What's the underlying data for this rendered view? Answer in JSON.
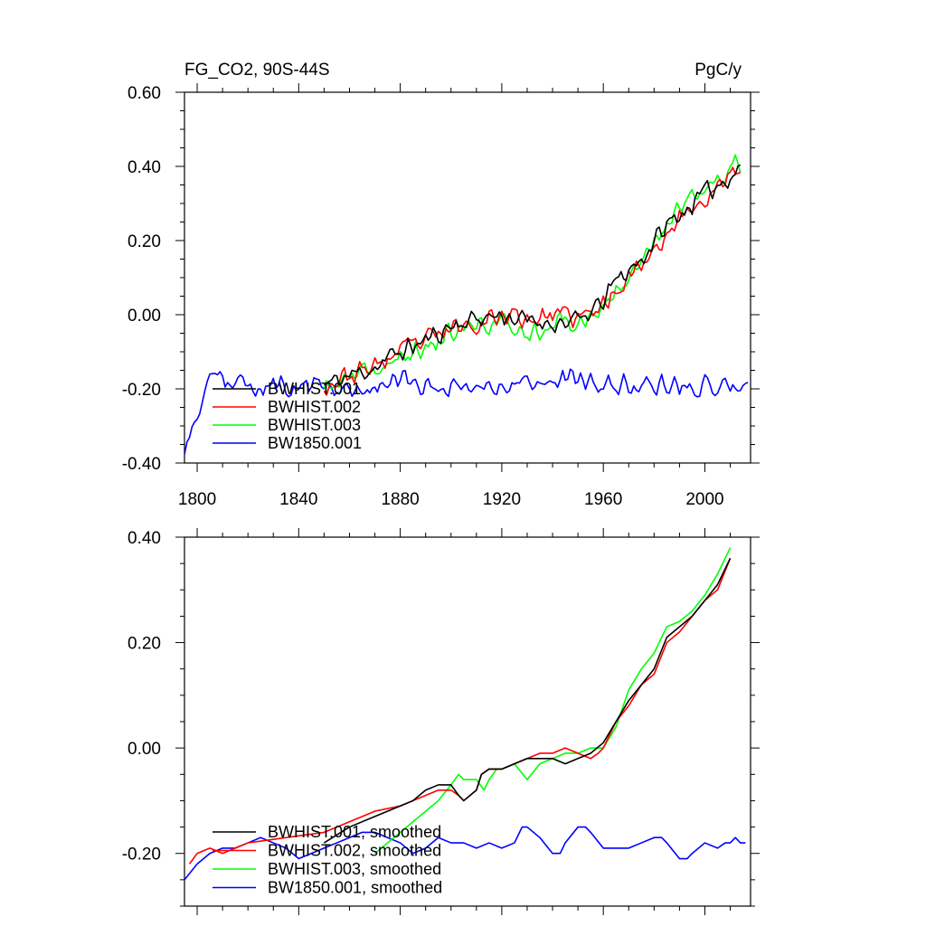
{
  "figure": {
    "title_left": "FG_CO2, 90S-44S",
    "title_right": "PgC/y"
  },
  "chart_data": [
    {
      "type": "line",
      "panel": "annual",
      "title": "FG_CO2, 90S-44S",
      "units": "PgC/y",
      "xlim": [
        1795,
        2018
      ],
      "ylim": [
        -0.4,
        0.6
      ],
      "x_ticks": [
        1800,
        1840,
        1880,
        1920,
        1960,
        2000
      ],
      "x_tick_labels": [
        "1800",
        "1840",
        "1880",
        "1920",
        "1960",
        "2000"
      ],
      "y_ticks": [
        -0.4,
        -0.2,
        0.0,
        0.2,
        0.4,
        0.6
      ],
      "y_tick_labels": [
        "-0.40",
        "-0.20",
        "0.00",
        "0.20",
        "0.40",
        "0.60"
      ],
      "legend_position": "lower-left",
      "series": [
        {
          "name": "BWHIST.001",
          "color": "#000000",
          "x_start": 1850,
          "x_end": 2014,
          "anchors": [
            [
              1850,
              -0.19
            ],
            [
              1870,
              -0.14
            ],
            [
              1880,
              -0.1
            ],
            [
              1890,
              -0.07
            ],
            [
              1900,
              -0.03
            ],
            [
              1910,
              -0.01
            ],
            [
              1920,
              0.0
            ],
            [
              1930,
              -0.02
            ],
            [
              1940,
              -0.02
            ],
            [
              1950,
              -0.02
            ],
            [
              1958,
              0.02
            ],
            [
              1965,
              0.09
            ],
            [
              1975,
              0.15
            ],
            [
              1985,
              0.24
            ],
            [
              1995,
              0.3
            ],
            [
              2005,
              0.35
            ],
            [
              2014,
              0.4
            ]
          ],
          "noise": 0.035,
          "seed": 11
        },
        {
          "name": "BWHIST.002",
          "color": "#ff0000",
          "x_start": 1850,
          "x_end": 2014,
          "anchors": [
            [
              1850,
              -0.19
            ],
            [
              1870,
              -0.14
            ],
            [
              1880,
              -0.1
            ],
            [
              1890,
              -0.07
            ],
            [
              1900,
              -0.04
            ],
            [
              1910,
              -0.02
            ],
            [
              1920,
              0.0
            ],
            [
              1930,
              -0.01
            ],
            [
              1940,
              0.0
            ],
            [
              1950,
              -0.01
            ],
            [
              1958,
              0.01
            ],
            [
              1965,
              0.07
            ],
            [
              1975,
              0.14
            ],
            [
              1985,
              0.22
            ],
            [
              1995,
              0.29
            ],
            [
              2005,
              0.34
            ],
            [
              2014,
              0.39
            ]
          ],
          "noise": 0.035,
          "seed": 23
        },
        {
          "name": "BWHIST.003",
          "color": "#00ff00",
          "x_start": 1850,
          "x_end": 2014,
          "anchors": [
            [
              1850,
              -0.2
            ],
            [
              1870,
              -0.15
            ],
            [
              1880,
              -0.12
            ],
            [
              1890,
              -0.09
            ],
            [
              1900,
              -0.05
            ],
            [
              1910,
              -0.03
            ],
            [
              1920,
              -0.02
            ],
            [
              1930,
              -0.05
            ],
            [
              1940,
              -0.02
            ],
            [
              1950,
              -0.02
            ],
            [
              1958,
              0.0
            ],
            [
              1965,
              0.07
            ],
            [
              1975,
              0.16
            ],
            [
              1985,
              0.25
            ],
            [
              1995,
              0.31
            ],
            [
              2005,
              0.36
            ],
            [
              2014,
              0.41
            ]
          ],
          "noise": 0.035,
          "seed": 37
        },
        {
          "name": "BW1850.001",
          "color": "#0000ff",
          "x_start": 1795,
          "x_end": 2017,
          "anchors": [
            [
              1795,
              -0.36
            ],
            [
              1800,
              -0.27
            ],
            [
              1805,
              -0.18
            ],
            [
              1820,
              -0.19
            ],
            [
              1840,
              -0.2
            ],
            [
              1860,
              -0.2
            ],
            [
              1880,
              -0.18
            ],
            [
              1900,
              -0.19
            ],
            [
              1920,
              -0.19
            ],
            [
              1940,
              -0.17
            ],
            [
              1960,
              -0.19
            ],
            [
              1980,
              -0.19
            ],
            [
              2000,
              -0.19
            ],
            [
              2017,
              -0.19
            ]
          ],
          "noise": 0.035,
          "seed": 53
        }
      ]
    },
    {
      "type": "line",
      "panel": "smoothed",
      "xlim": [
        1795,
        2018
      ],
      "ylim": [
        -0.3,
        0.4
      ],
      "x_ticks": [
        1800,
        1840,
        1880,
        1920,
        1960,
        2000
      ],
      "y_ticks": [
        -0.2,
        0.0,
        0.2,
        0.4
      ],
      "y_tick_labels": [
        "-0.20",
        "0.00",
        "0.20",
        "0.40"
      ],
      "legend_position": "lower-left",
      "series": [
        {
          "name": "BWHIST.001, smoothed",
          "color": "#000000",
          "points": [
            [
              1850,
              -0.18
            ],
            [
              1860,
              -0.15
            ],
            [
              1870,
              -0.13
            ],
            [
              1880,
              -0.11
            ],
            [
              1885,
              -0.1
            ],
            [
              1890,
              -0.08
            ],
            [
              1895,
              -0.07
            ],
            [
              1900,
              -0.07
            ],
            [
              1903,
              -0.09
            ],
            [
              1905,
              -0.1
            ],
            [
              1910,
              -0.08
            ],
            [
              1912,
              -0.05
            ],
            [
              1915,
              -0.04
            ],
            [
              1920,
              -0.04
            ],
            [
              1925,
              -0.03
            ],
            [
              1930,
              -0.02
            ],
            [
              1935,
              -0.02
            ],
            [
              1940,
              -0.02
            ],
            [
              1945,
              -0.03
            ],
            [
              1950,
              -0.02
            ],
            [
              1955,
              -0.01
            ],
            [
              1960,
              0.01
            ],
            [
              1965,
              0.05
            ],
            [
              1970,
              0.09
            ],
            [
              1975,
              0.12
            ],
            [
              1980,
              0.15
            ],
            [
              1985,
              0.21
            ],
            [
              1990,
              0.23
            ],
            [
              1995,
              0.25
            ],
            [
              2000,
              0.28
            ],
            [
              2005,
              0.31
            ],
            [
              2010,
              0.36
            ]
          ]
        },
        {
          "name": "BWHIST.002, smoothed",
          "color": "#ff0000",
          "points": [
            [
              1797,
              -0.22
            ],
            [
              1800,
              -0.2
            ],
            [
              1805,
              -0.19
            ],
            [
              1810,
              -0.2
            ],
            [
              1815,
              -0.19
            ],
            [
              1820,
              -0.18
            ],
            [
              1850,
              -0.16
            ],
            [
              1860,
              -0.14
            ],
            [
              1870,
              -0.12
            ],
            [
              1880,
              -0.11
            ],
            [
              1885,
              -0.1
            ],
            [
              1890,
              -0.09
            ],
            [
              1895,
              -0.08
            ],
            [
              1900,
              -0.08
            ],
            [
              1903,
              -0.09
            ],
            [
              1905,
              -0.1
            ],
            [
              1910,
              -0.08
            ],
            [
              1912,
              -0.05
            ],
            [
              1915,
              -0.04
            ],
            [
              1920,
              -0.04
            ],
            [
              1925,
              -0.03
            ],
            [
              1930,
              -0.02
            ],
            [
              1935,
              -0.01
            ],
            [
              1940,
              -0.01
            ],
            [
              1945,
              -0.0
            ],
            [
              1950,
              -0.01
            ],
            [
              1955,
              -0.02
            ],
            [
              1958,
              -0.01
            ],
            [
              1960,
              0.0
            ],
            [
              1965,
              0.05
            ],
            [
              1970,
              0.08
            ],
            [
              1975,
              0.12
            ],
            [
              1980,
              0.14
            ],
            [
              1985,
              0.2
            ],
            [
              1990,
              0.22
            ],
            [
              1995,
              0.25
            ],
            [
              2000,
              0.28
            ],
            [
              2005,
              0.3
            ],
            [
              2010,
              0.36
            ]
          ]
        },
        {
          "name": "BWHIST.003, smoothed",
          "color": "#00ff00",
          "points": [
            [
              1870,
              -0.2
            ],
            [
              1875,
              -0.18
            ],
            [
              1880,
              -0.16
            ],
            [
              1885,
              -0.14
            ],
            [
              1890,
              -0.12
            ],
            [
              1895,
              -0.1
            ],
            [
              1900,
              -0.07
            ],
            [
              1903,
              -0.05
            ],
            [
              1905,
              -0.06
            ],
            [
              1910,
              -0.06
            ],
            [
              1913,
              -0.08
            ],
            [
              1915,
              -0.06
            ],
            [
              1918,
              -0.04
            ],
            [
              1920,
              -0.04
            ],
            [
              1925,
              -0.03
            ],
            [
              1930,
              -0.06
            ],
            [
              1935,
              -0.03
            ],
            [
              1940,
              -0.02
            ],
            [
              1945,
              -0.01
            ],
            [
              1950,
              -0.01
            ],
            [
              1955,
              -0.0
            ],
            [
              1960,
              0.0
            ],
            [
              1965,
              0.04
            ],
            [
              1970,
              0.11
            ],
            [
              1975,
              0.15
            ],
            [
              1980,
              0.18
            ],
            [
              1985,
              0.23
            ],
            [
              1990,
              0.24
            ],
            [
              1995,
              0.26
            ],
            [
              2000,
              0.29
            ],
            [
              2005,
              0.33
            ],
            [
              2010,
              0.38
            ]
          ]
        },
        {
          "name": "BW1850.001, smoothed",
          "color": "#0000ff",
          "points": [
            [
              1795,
              -0.25
            ],
            [
              1800,
              -0.22
            ],
            [
              1805,
              -0.2
            ],
            [
              1810,
              -0.19
            ],
            [
              1815,
              -0.19
            ],
            [
              1820,
              -0.18
            ],
            [
              1825,
              -0.17
            ],
            [
              1830,
              -0.18
            ],
            [
              1835,
              -0.19
            ],
            [
              1840,
              -0.21
            ],
            [
              1845,
              -0.2
            ],
            [
              1850,
              -0.19
            ],
            [
              1855,
              -0.18
            ],
            [
              1860,
              -0.17
            ],
            [
              1865,
              -0.16
            ],
            [
              1870,
              -0.16
            ],
            [
              1875,
              -0.17
            ],
            [
              1880,
              -0.18
            ],
            [
              1885,
              -0.2
            ],
            [
              1890,
              -0.19
            ],
            [
              1895,
              -0.17
            ],
            [
              1900,
              -0.18
            ],
            [
              1905,
              -0.18
            ],
            [
              1910,
              -0.19
            ],
            [
              1915,
              -0.18
            ],
            [
              1920,
              -0.19
            ],
            [
              1925,
              -0.18
            ],
            [
              1928,
              -0.15
            ],
            [
              1930,
              -0.15
            ],
            [
              1935,
              -0.17
            ],
            [
              1940,
              -0.2
            ],
            [
              1943,
              -0.2
            ],
            [
              1945,
              -0.18
            ],
            [
              1950,
              -0.15
            ],
            [
              1953,
              -0.15
            ],
            [
              1955,
              -0.16
            ],
            [
              1960,
              -0.19
            ],
            [
              1965,
              -0.19
            ],
            [
              1970,
              -0.19
            ],
            [
              1975,
              -0.18
            ],
            [
              1980,
              -0.17
            ],
            [
              1983,
              -0.17
            ],
            [
              1985,
              -0.18
            ],
            [
              1990,
              -0.21
            ],
            [
              1993,
              -0.21
            ],
            [
              1995,
              -0.2
            ],
            [
              2000,
              -0.18
            ],
            [
              2005,
              -0.19
            ],
            [
              2008,
              -0.18
            ],
            [
              2010,
              -0.18
            ],
            [
              2012,
              -0.17
            ],
            [
              2014,
              -0.18
            ],
            [
              2016,
              -0.18
            ]
          ]
        }
      ]
    }
  ]
}
